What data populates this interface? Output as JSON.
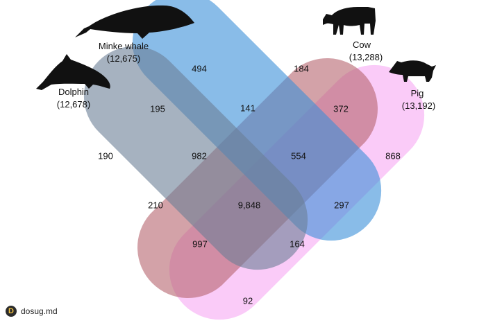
{
  "species": [
    {
      "name": "Dolphin",
      "count": "(12,678)",
      "color": "#6b7f96"
    },
    {
      "name": "Minke whale",
      "count": "(12,675)",
      "color": "#3a8fd8"
    },
    {
      "name": "Cow",
      "count": "(13,288)",
      "color": "#b5646e"
    },
    {
      "name": "Pig",
      "count": "(13,192)",
      "color": "#f7a8f4"
    }
  ],
  "regions": {
    "dolphin_only": "190",
    "minke_only": "494",
    "cow_only": "184",
    "pig_only": "868",
    "dolphin_minke": "195",
    "minke_cow": "141",
    "cow_pig": "372",
    "dolphin_minke_cow": "982",
    "minke_cow_pig": "554",
    "dolphin_cow": "210",
    "all_four": "9,848",
    "minke_pig": "297",
    "dolphin_cow_pig": "997",
    "dolphin_minke_pig": "164",
    "dolphin_pig": "92"
  },
  "watermark": {
    "logo": "D",
    "text": "dosug.md"
  }
}
